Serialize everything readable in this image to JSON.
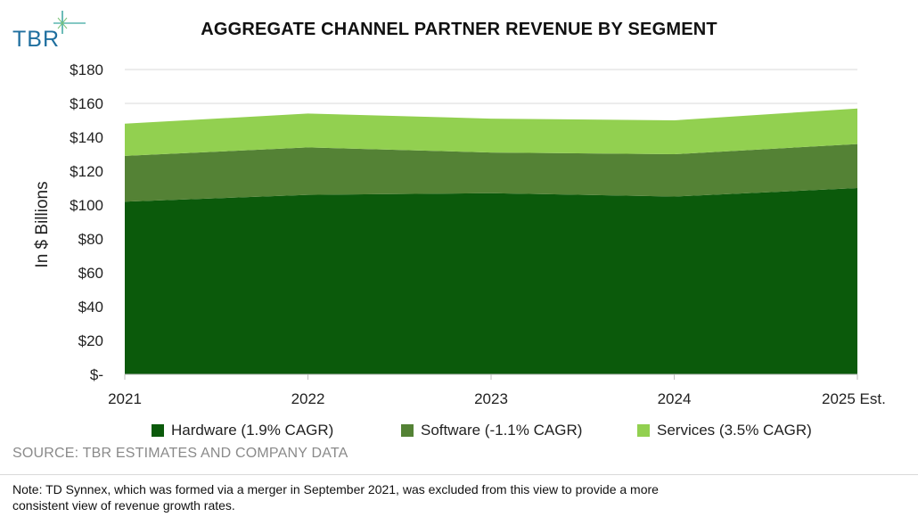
{
  "logo": {
    "text": "TBR",
    "icon": "tbr-star-icon",
    "color": "#1f6f9f"
  },
  "chart_data": {
    "type": "area",
    "stacked": true,
    "title": "AGGREGATE CHANNEL PARTNER REVENUE BY SEGMENT",
    "ylabel": "In $ Billions",
    "xlabel": "",
    "categories": [
      "2021",
      "2022",
      "2023",
      "2024",
      "2025 Est."
    ],
    "ylim": [
      0,
      180
    ],
    "yticks": [
      0,
      20,
      40,
      60,
      80,
      100,
      120,
      140,
      160,
      180
    ],
    "ytick_labels": [
      "$-",
      "$20",
      "$40",
      "$60",
      "$80",
      "$100",
      "$120",
      "$140",
      "$160",
      "$180"
    ],
    "grid": true,
    "legend_position": "bottom",
    "series": [
      {
        "name": "Hardware (1.9% CAGR)",
        "color": "#0b5a0b",
        "values": [
          102,
          106,
          107,
          105,
          110
        ]
      },
      {
        "name": "Software (-1.1% CAGR)",
        "color": "#548235",
        "values": [
          27,
          28,
          24,
          25,
          26
        ]
      },
      {
        "name": "Services (3.5% CAGR)",
        "color": "#92d050",
        "values": [
          19,
          20,
          20,
          20,
          21
        ]
      }
    ]
  },
  "source": "SOURCE: TBR ESTIMATES AND COMPANY DATA",
  "note": "Note: TD Synnex, which was formed via a merger in September 2021, was excluded from this view to provide a more consistent view of revenue growth rates."
}
